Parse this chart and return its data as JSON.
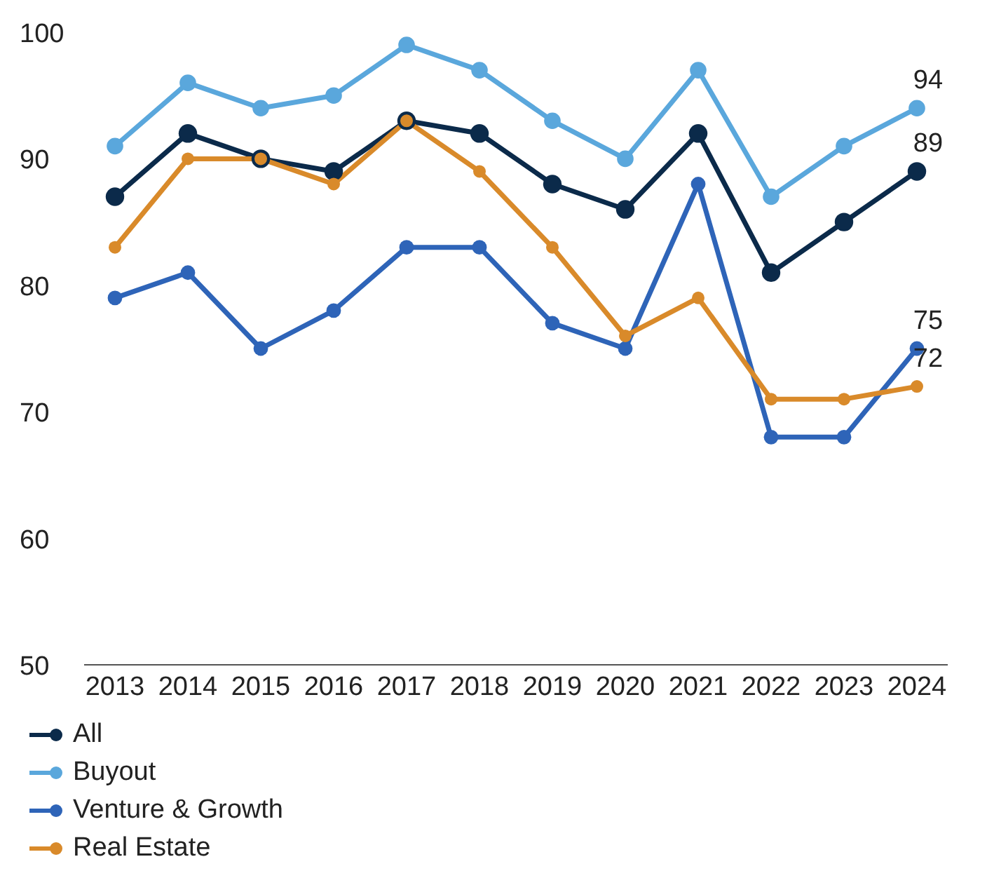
{
  "chart_data": {
    "type": "line",
    "categories": [
      "2013",
      "2014",
      "2015",
      "2016",
      "2017",
      "2018",
      "2019",
      "2020",
      "2021",
      "2022",
      "2023",
      "2024"
    ],
    "series": [
      {
        "name": "All",
        "color": "#0b2a4a",
        "values": [
          87,
          92,
          90,
          89,
          93,
          92,
          88,
          86,
          92,
          81,
          85,
          89
        ],
        "value_labels": [
          null,
          null,
          null,
          null,
          null,
          null,
          null,
          null,
          null,
          null,
          null,
          "89"
        ]
      },
      {
        "name": "Buyout",
        "color": "#5aa7dc",
        "values": [
          91,
          96,
          94,
          95,
          99,
          97,
          93,
          90,
          97,
          87,
          91,
          94
        ],
        "value_labels": [
          null,
          null,
          null,
          null,
          null,
          null,
          null,
          null,
          null,
          null,
          null,
          "94"
        ]
      },
      {
        "name": "Venture & Growth",
        "color": "#2e64b8",
        "values": [
          79,
          81,
          75,
          78,
          83,
          83,
          77,
          75,
          88,
          68,
          68,
          75
        ],
        "value_labels": [
          null,
          null,
          null,
          null,
          null,
          null,
          null,
          null,
          null,
          null,
          null,
          "75"
        ]
      },
      {
        "name": "Real Estate",
        "color": "#d98a2a",
        "values": [
          83,
          90,
          90,
          88,
          93,
          89,
          83,
          76,
          79,
          71,
          71,
          72
        ],
        "value_labels": [
          null,
          null,
          null,
          null,
          null,
          null,
          null,
          null,
          null,
          null,
          null,
          "72"
        ]
      }
    ],
    "ylim": [
      50,
      100
    ],
    "yticks": [
      50,
      60,
      70,
      80,
      90,
      100
    ],
    "grid": false,
    "legend": "bottom",
    "marker": "circle",
    "line_style": "solid"
  }
}
